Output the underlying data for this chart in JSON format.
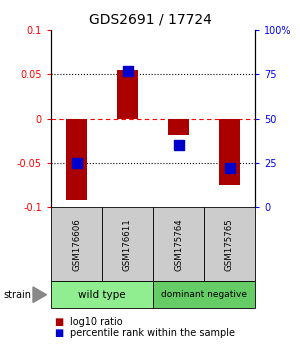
{
  "title": "GDS2691 / 17724",
  "samples": [
    "GSM176606",
    "GSM176611",
    "GSM175764",
    "GSM175765"
  ],
  "log10_ratio": [
    -0.092,
    0.055,
    -0.018,
    -0.075
  ],
  "percentile_rank": [
    25,
    77,
    35,
    22
  ],
  "groups": [
    {
      "name": "wild type",
      "samples": [
        0,
        1
      ],
      "color": "#90EE90"
    },
    {
      "name": "dominant negative",
      "samples": [
        2,
        3
      ],
      "color": "#66CC66"
    }
  ],
  "ylim": [
    -0.1,
    0.1
  ],
  "y2lim": [
    0,
    100
  ],
  "yticks": [
    -0.1,
    -0.05,
    0,
    0.05,
    0.1
  ],
  "y2ticks": [
    0,
    25,
    50,
    75,
    100
  ],
  "ytick_labels": [
    "-0.1",
    "-0.05",
    "0",
    "0.05",
    "0.1"
  ],
  "y2tick_labels": [
    "0",
    "25",
    "50",
    "75",
    "100%"
  ],
  "hlines": [
    -0.05,
    0.0,
    0.05
  ],
  "hline_styles": [
    "dotted",
    "dashed_red",
    "dotted"
  ],
  "hline_colors": [
    "black",
    "red",
    "black"
  ],
  "bar_color": "#aa0000",
  "dot_color": "#0000cc",
  "bar_width": 0.4,
  "dot_size": 55,
  "strain_label": "strain",
  "legend_ratio_label": "log10 ratio",
  "legend_pct_label": "percentile rank within the sample",
  "title_fontsize": 10,
  "tick_fontsize": 7,
  "label_fontsize": 7.5,
  "sample_box_color": "#cccccc",
  "wt_color": "#90EE90",
  "dn_color": "#66CC66"
}
